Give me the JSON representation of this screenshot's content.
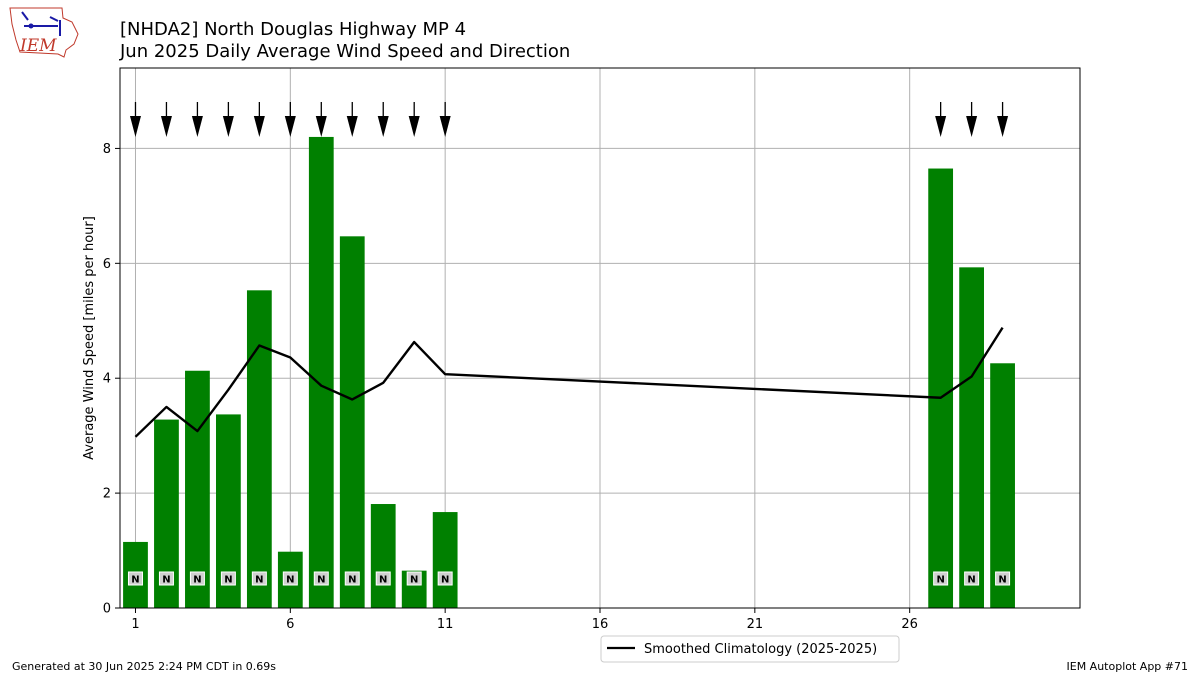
{
  "chart_data": {
    "type": "bar",
    "title": "[NHDA2] North Douglas Highway MP 4",
    "subtitle": "Jun 2025 Daily Average Wind Speed and Direction",
    "ylabel": "Average Wind Speed [miles per hour]",
    "xlabel": "",
    "xlim": [
      0.5,
      31.5
    ],
    "ylim": [
      0,
      9.4
    ],
    "x_ticks": [
      1,
      6,
      11,
      16,
      21,
      26
    ],
    "y_ticks": [
      0,
      2,
      4,
      6,
      8
    ],
    "grid": true,
    "legend_position": "bottom-center",
    "x": [
      1,
      2,
      3,
      4,
      5,
      6,
      7,
      8,
      9,
      10,
      11,
      27,
      28,
      29
    ],
    "series": [
      {
        "type": "bar",
        "values": [
          1.15,
          3.28,
          4.13,
          3.37,
          5.53,
          0.98,
          8.2,
          6.47,
          1.81,
          0.65,
          1.67,
          7.65,
          5.93,
          4.26
        ],
        "color": "#008000"
      },
      {
        "type": "line",
        "name": "Smoothed Climatology (2025-2025)",
        "values": [
          2.98,
          3.5,
          3.08,
          3.8,
          4.57,
          4.36,
          3.87,
          3.63,
          3.92,
          4.63,
          4.07,
          3.66,
          4.03,
          4.88
        ],
        "color": "#000000"
      }
    ],
    "direction_labels": [
      "N",
      "N",
      "N",
      "N",
      "N",
      "N",
      "N",
      "N",
      "N",
      "N",
      "N",
      "N",
      "N",
      "N"
    ],
    "direction_degrees": [
      0,
      0,
      0,
      0,
      0,
      0,
      0,
      0,
      0,
      0,
      0,
      0,
      0,
      0
    ]
  },
  "logo": {
    "text": "IEM"
  },
  "footer": {
    "generated": "Generated at 30 Jun 2025 2:24 PM CDT in 0.69s",
    "app": "IEM Autoplot App #71"
  },
  "colors": {
    "bar": "#008000",
    "line": "#000000",
    "grid": "#b0b0b0",
    "logo": "#c0392b"
  }
}
